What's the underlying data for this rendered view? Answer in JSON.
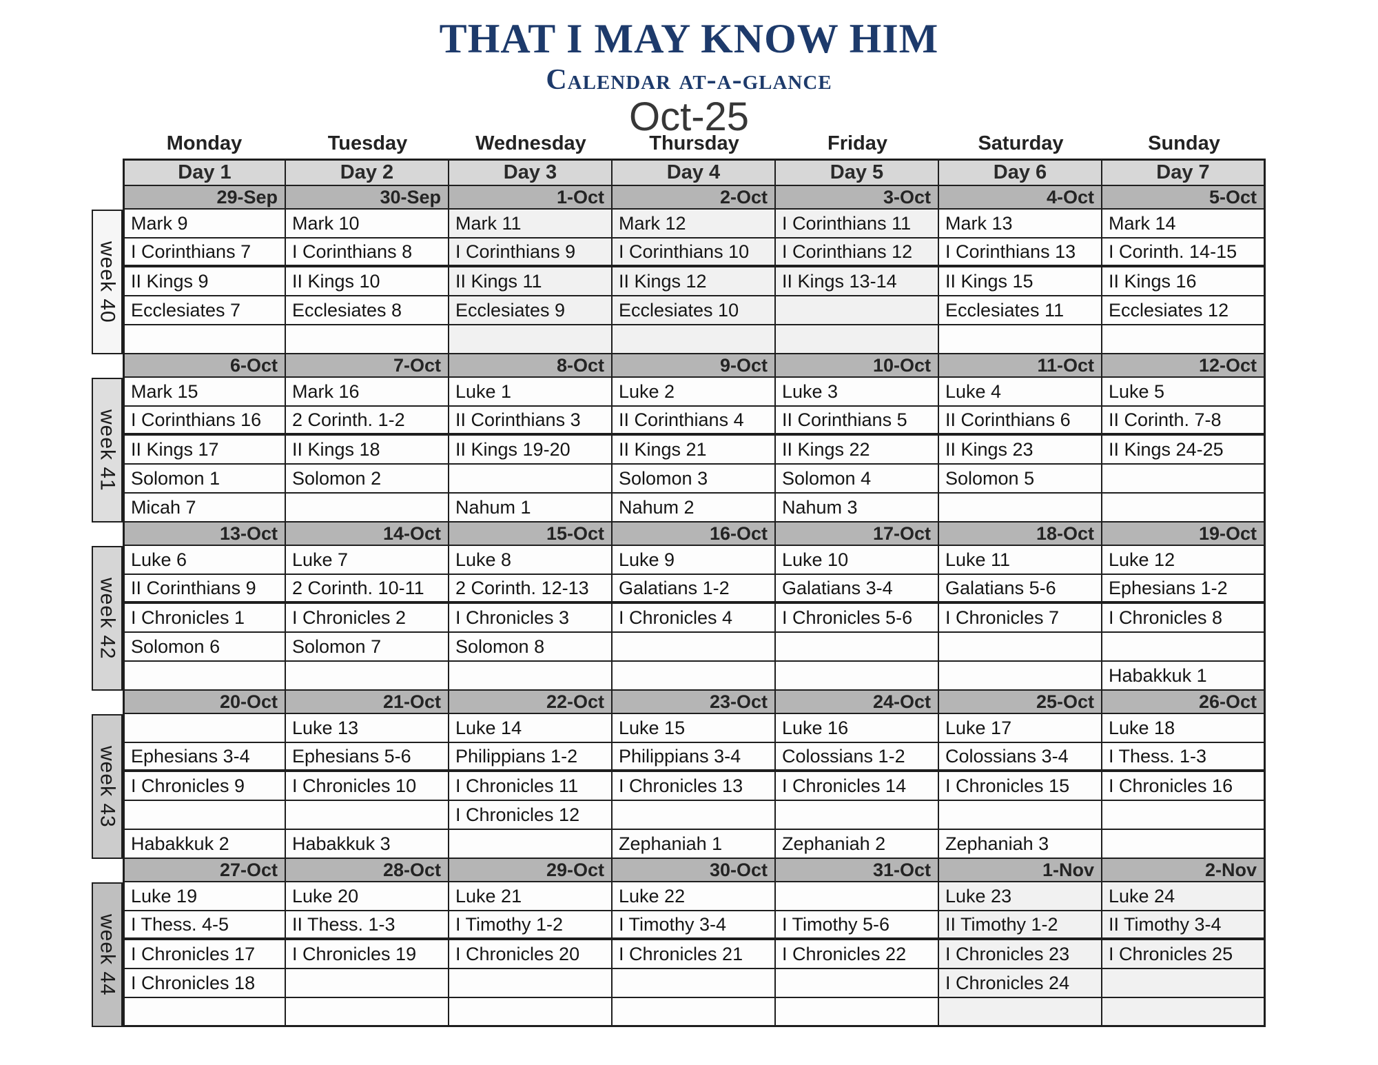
{
  "header": {
    "title": "THAT I MAY KNOW HIM",
    "subtitle": "Calendar at-a-glance",
    "month_label": "Oct-25"
  },
  "colors": {
    "title_navy": "#1d3a6b",
    "day_row_gray": "#d7d7d7",
    "date_row_gray": "#b5b5b5",
    "border_black": "#1e1e1e",
    "week_label_bg": [
      "#f6f6f6",
      "#dedede",
      "#d6d6d6",
      "#cccccc",
      "#bfbfbf"
    ]
  },
  "weekday_headers": [
    "Monday",
    "Tuesday",
    "Wednesday",
    "Thursday",
    "Friday",
    "Saturday",
    "Sunday"
  ],
  "day_headers": [
    "Day 1",
    "Day 2",
    "Day 3",
    "Day 4",
    "Day 5",
    "Day 6",
    "Day 7"
  ],
  "weeks": [
    {
      "label": "week 40",
      "dates": [
        "29-Sep",
        "30-Sep",
        "1-Oct",
        "2-Oct",
        "3-Oct",
        "4-Oct",
        "5-Oct"
      ],
      "rows": [
        [
          "Mark 9",
          "Mark 10",
          "Mark 11",
          "Mark 12",
          "I Corinthians 11",
          "Mark 13",
          "Mark 14"
        ],
        [
          "I Corinthians 7",
          "I Corinthians 8",
          "I Corinthians 9",
          "I Corinthians 10",
          "I Corinthians 12",
          "I Corinthians 13",
          "I Corinth. 14-15"
        ],
        [
          "II Kings 9",
          "II Kings 10",
          "II Kings 11",
          "II Kings 12",
          "II Kings 13-14",
          "II Kings 15",
          "II Kings 16"
        ],
        [
          "Ecclesiates 7",
          "Ecclesiates 8",
          "Ecclesiates 9",
          "Ecclesiates 10",
          "",
          "Ecclesiates 11",
          "Ecclesiates 12"
        ],
        [
          "",
          "",
          "",
          "",
          "",
          "",
          ""
        ]
      ]
    },
    {
      "label": "week 41",
      "dates": [
        "6-Oct",
        "7-Oct",
        "8-Oct",
        "9-Oct",
        "10-Oct",
        "11-Oct",
        "12-Oct"
      ],
      "rows": [
        [
          "Mark 15",
          "Mark 16",
          "Luke 1",
          "Luke 2",
          "Luke 3",
          "Luke 4",
          "Luke 5"
        ],
        [
          "I Corinthians 16",
          "2 Corinth. 1-2",
          "II Corinthians 3",
          "II Corinthians 4",
          "II Corinthians 5",
          "II Corinthians 6",
          "II Corinth. 7-8"
        ],
        [
          "II Kings 17",
          "II Kings 18",
          "II Kings 19-20",
          "II Kings 21",
          "II Kings 22",
          "II Kings 23",
          "II Kings 24-25"
        ],
        [
          "Solomon 1",
          "Solomon 2",
          "",
          "Solomon 3",
          "Solomon 4",
          "Solomon 5",
          ""
        ],
        [
          "Micah 7",
          "",
          "Nahum 1",
          "Nahum 2",
          "Nahum 3",
          "",
          ""
        ]
      ]
    },
    {
      "label": "week 42",
      "dates": [
        "13-Oct",
        "14-Oct",
        "15-Oct",
        "16-Oct",
        "17-Oct",
        "18-Oct",
        "19-Oct"
      ],
      "rows": [
        [
          "Luke 6",
          "Luke 7",
          "Luke 8",
          "Luke 9",
          "Luke 10",
          "Luke 11",
          "Luke 12"
        ],
        [
          "II Corinthians 9",
          "2 Corinth. 10-11",
          "2 Corinth. 12-13",
          "Galatians 1-2",
          "Galatians 3-4",
          "Galatians 5-6",
          "Ephesians 1-2"
        ],
        [
          "I Chronicles 1",
          "I Chronicles 2",
          "I Chronicles 3",
          "I Chronicles 4",
          "I Chronicles 5-6",
          "I Chronicles 7",
          "I Chronicles 8"
        ],
        [
          "Solomon 6",
          "Solomon 7",
          "Solomon 8",
          "",
          "",
          "",
          ""
        ],
        [
          "",
          "",
          "",
          "",
          "",
          "",
          "Habakkuk 1"
        ]
      ]
    },
    {
      "label": "week 43",
      "dates": [
        "20-Oct",
        "21-Oct",
        "22-Oct",
        "23-Oct",
        "24-Oct",
        "25-Oct",
        "26-Oct"
      ],
      "rows": [
        [
          "",
          "Luke 13",
          "Luke 14",
          "Luke 15",
          "Luke 16",
          "Luke 17",
          "Luke 18"
        ],
        [
          "Ephesians 3-4",
          "Ephesians 5-6",
          "Philippians 1-2",
          "Philippians 3-4",
          "Colossians 1-2",
          "Colossians 3-4",
          "I Thess. 1-3"
        ],
        [
          "I Chronicles 9",
          "I Chronicles 10",
          "I Chronicles 11",
          "I Chronicles 13",
          "I Chronicles 14",
          "I Chronicles 15",
          "I Chronicles 16"
        ],
        [
          "",
          "",
          "I Chronicles 12",
          "",
          "",
          "",
          ""
        ],
        [
          "Habakkuk 2",
          "Habakkuk 3",
          "",
          "Zephaniah 1",
          "Zephaniah 2",
          "Zephaniah 3",
          ""
        ]
      ]
    },
    {
      "label": "week 44",
      "dates": [
        "27-Oct",
        "28-Oct",
        "29-Oct",
        "30-Oct",
        "31-Oct",
        "1-Nov",
        "2-Nov"
      ],
      "rows": [
        [
          "Luke 19",
          "Luke 20",
          "Luke 21",
          "Luke 22",
          "",
          "Luke 23",
          "Luke 24"
        ],
        [
          "I Thess. 4-5",
          "II Thess. 1-3",
          "I Timothy 1-2",
          "I Timothy 3-4",
          "I Timothy 5-6",
          "II Timothy 1-2",
          "II Timothy 3-4"
        ],
        [
          "I Chronicles 17",
          "I Chronicles 19",
          "I Chronicles 20",
          "I Chronicles 21",
          "I Chronicles 22",
          "I Chronicles 23",
          "I Chronicles 25"
        ],
        [
          "I Chronicles 18",
          "",
          "",
          "",
          "",
          "I Chronicles 24",
          ""
        ],
        [
          "",
          "",
          "",
          "",
          "",
          "",
          ""
        ]
      ]
    }
  ]
}
